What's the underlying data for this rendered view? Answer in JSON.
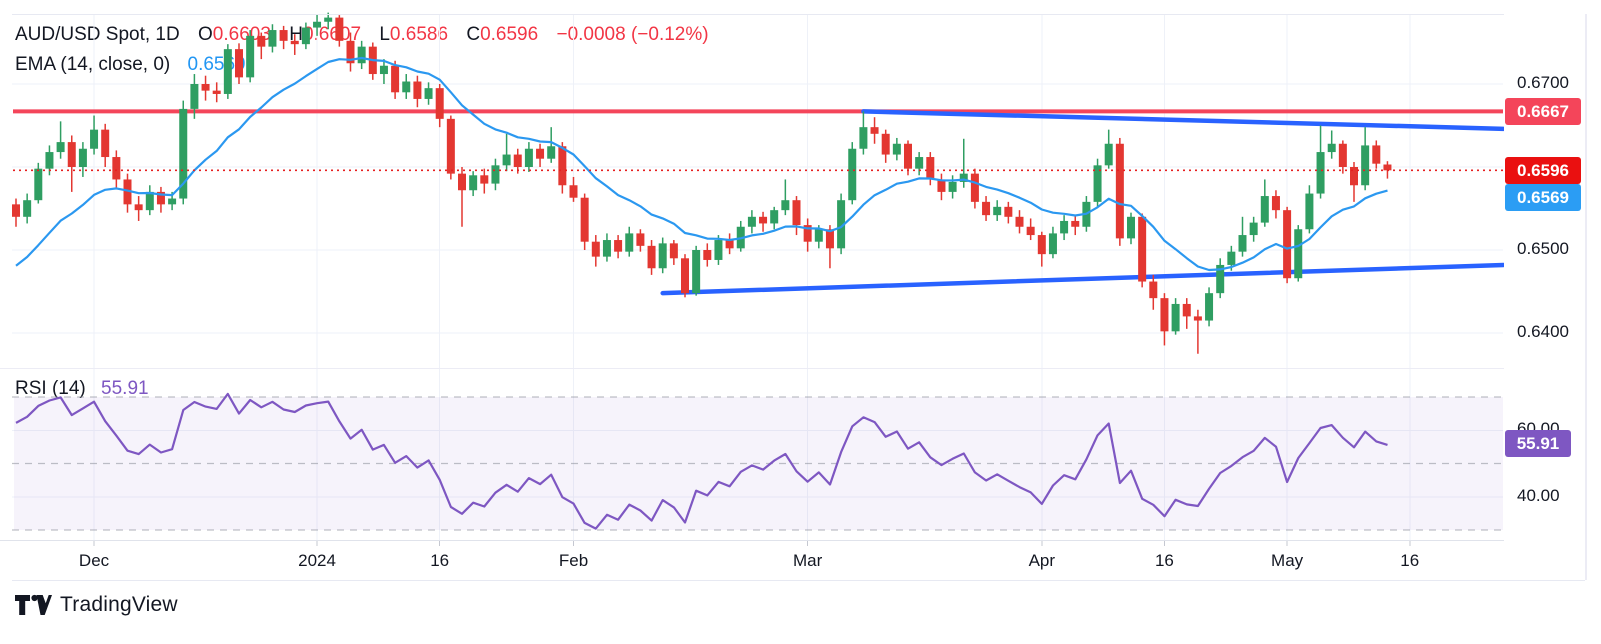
{
  "header": {
    "title": "AUD/USD Spot, 1D",
    "ohlc": {
      "o_label": "O",
      "o": "0.6603",
      "h_label": "H",
      "h": "0.6607",
      "l_label": "L",
      "l": "0.6586",
      "c_label": "C",
      "c": "0.6596",
      "change": "−0.0008 (−0.12%)"
    },
    "ema_label": "EMA (14, close, 0)",
    "ema_value": "0.6569"
  },
  "rsi_legend": {
    "label": "RSI (14)",
    "value": "55.91"
  },
  "badges": {
    "hline": "0.6667",
    "last": "0.6596",
    "ema": "0.6569",
    "rsi": "55.91"
  },
  "footer": {
    "brand": "TradingView"
  },
  "colors": {
    "up": "#2f9e62",
    "down": "#e33731",
    "ema": "#2b98f0",
    "trend": "#2962ff",
    "rsi": "#7e57c2",
    "hline": "#f4455a",
    "last_line": "#e62020",
    "grid": "#eef1f8",
    "dashed": "#8a8e99",
    "text": "#131722",
    "legend_red": "#f23645"
  },
  "chart_data": {
    "type": "candlestick",
    "symbol": "AUD/USD Spot",
    "interval": "1D",
    "title": "AUD/USD Spot, 1D",
    "last_ohlc": {
      "open": 0.6603,
      "high": 0.6607,
      "low": 0.6586,
      "close": 0.6596,
      "change": -0.0008,
      "change_pct": -0.12
    },
    "price_axis": {
      "range": [
        0.6371,
        0.6795
      ],
      "ticks": [
        {
          "price": 0.67,
          "label": "0.6700"
        },
        {
          "price": 0.66,
          "label": null
        },
        {
          "price": 0.65,
          "label": "0.6500"
        },
        {
          "price": 0.64,
          "label": "0.6400"
        }
      ]
    },
    "time_axis": {
      "ticks": [
        {
          "label": "Dec",
          "i": 7
        },
        {
          "label": "2024",
          "i": 27
        },
        {
          "label": "16",
          "i": 38
        },
        {
          "label": "Feb",
          "i": 50
        },
        {
          "label": "Mar",
          "i": 71
        },
        {
          "label": "Apr",
          "i": 92
        },
        {
          "label": "16",
          "i": 103
        },
        {
          "label": "May",
          "i": 114
        },
        {
          "label": "16",
          "i": 125
        }
      ]
    },
    "candles": [
      [
        0.6555,
        0.6562,
        0.6528,
        0.654
      ],
      [
        0.654,
        0.6568,
        0.6532,
        0.656
      ],
      [
        0.656,
        0.6605,
        0.6556,
        0.6598
      ],
      [
        0.6598,
        0.6626,
        0.659,
        0.6618
      ],
      [
        0.6618,
        0.6655,
        0.661,
        0.663
      ],
      [
        0.663,
        0.6638,
        0.657,
        0.66
      ],
      [
        0.66,
        0.663,
        0.6588,
        0.6622
      ],
      [
        0.6622,
        0.6662,
        0.6615,
        0.6645
      ],
      [
        0.6645,
        0.6652,
        0.66,
        0.6612
      ],
      [
        0.6612,
        0.662,
        0.6575,
        0.6585
      ],
      [
        0.6585,
        0.6592,
        0.6545,
        0.6555
      ],
      [
        0.6555,
        0.6565,
        0.6535,
        0.6548
      ],
      [
        0.6548,
        0.6578,
        0.6542,
        0.657
      ],
      [
        0.657,
        0.6576,
        0.6545,
        0.6555
      ],
      [
        0.6555,
        0.657,
        0.6548,
        0.6562
      ],
      [
        0.6562,
        0.668,
        0.6555,
        0.667
      ],
      [
        0.667,
        0.6712,
        0.6658,
        0.67
      ],
      [
        0.67,
        0.671,
        0.668,
        0.6692
      ],
      [
        0.6692,
        0.6702,
        0.6678,
        0.6688
      ],
      [
        0.6688,
        0.6748,
        0.6682,
        0.6742
      ],
      [
        0.6742,
        0.6749,
        0.67,
        0.6708
      ],
      [
        0.6708,
        0.6765,
        0.6702,
        0.6758
      ],
      [
        0.6758,
        0.6762,
        0.673,
        0.6745
      ],
      [
        0.6745,
        0.6772,
        0.6738,
        0.6765
      ],
      [
        0.6765,
        0.677,
        0.6742,
        0.6752
      ],
      [
        0.6752,
        0.676,
        0.6735,
        0.6748
      ],
      [
        0.6748,
        0.6774,
        0.6742,
        0.6768
      ],
      [
        0.6768,
        0.6784,
        0.6758,
        0.6775
      ],
      [
        0.6775,
        0.6786,
        0.6766,
        0.678
      ],
      [
        0.678,
        0.6783,
        0.6745,
        0.6752
      ],
      [
        0.6752,
        0.6762,
        0.6715,
        0.6725
      ],
      [
        0.6725,
        0.6752,
        0.6718,
        0.6745
      ],
      [
        0.6745,
        0.675,
        0.6705,
        0.6712
      ],
      [
        0.6712,
        0.673,
        0.67,
        0.6722
      ],
      [
        0.6722,
        0.6728,
        0.6682,
        0.669
      ],
      [
        0.669,
        0.6712,
        0.6682,
        0.6703
      ],
      [
        0.6703,
        0.671,
        0.6672,
        0.6682
      ],
      [
        0.6682,
        0.6702,
        0.6675,
        0.6695
      ],
      [
        0.6695,
        0.67,
        0.6648,
        0.6658
      ],
      [
        0.6658,
        0.6662,
        0.6585,
        0.6592
      ],
      [
        0.6592,
        0.66,
        0.6528,
        0.6572
      ],
      [
        0.6572,
        0.6595,
        0.6565,
        0.659
      ],
      [
        0.659,
        0.6598,
        0.6568,
        0.658
      ],
      [
        0.658,
        0.661,
        0.6572,
        0.6602
      ],
      [
        0.6602,
        0.664,
        0.6595,
        0.6615
      ],
      [
        0.6615,
        0.6622,
        0.6592,
        0.66
      ],
      [
        0.66,
        0.663,
        0.6594,
        0.6622
      ],
      [
        0.6622,
        0.6628,
        0.66,
        0.661
      ],
      [
        0.661,
        0.6648,
        0.6605,
        0.6625
      ],
      [
        0.6625,
        0.663,
        0.6568,
        0.6578
      ],
      [
        0.6578,
        0.6588,
        0.6558,
        0.6563
      ],
      [
        0.6563,
        0.6568,
        0.65,
        0.651
      ],
      [
        0.651,
        0.6518,
        0.648,
        0.6492
      ],
      [
        0.6492,
        0.652,
        0.6486,
        0.6512
      ],
      [
        0.6512,
        0.6518,
        0.649,
        0.6498
      ],
      [
        0.6498,
        0.6528,
        0.6492,
        0.652
      ],
      [
        0.652,
        0.6525,
        0.6498,
        0.6505
      ],
      [
        0.6505,
        0.6512,
        0.647,
        0.6478
      ],
      [
        0.6478,
        0.6515,
        0.6472,
        0.6508
      ],
      [
        0.6508,
        0.6512,
        0.6482,
        0.649
      ],
      [
        0.649,
        0.6495,
        0.6443,
        0.6448
      ],
      [
        0.6448,
        0.6505,
        0.6445,
        0.65
      ],
      [
        0.65,
        0.6508,
        0.648,
        0.6488
      ],
      [
        0.6488,
        0.6518,
        0.6482,
        0.6512
      ],
      [
        0.6512,
        0.652,
        0.6495,
        0.6502
      ],
      [
        0.6502,
        0.6535,
        0.6498,
        0.6528
      ],
      [
        0.6528,
        0.6548,
        0.652,
        0.654
      ],
      [
        0.654,
        0.6546,
        0.6522,
        0.6532
      ],
      [
        0.6532,
        0.6552,
        0.6525,
        0.6548
      ],
      [
        0.6548,
        0.6585,
        0.6542,
        0.656
      ],
      [
        0.656,
        0.6565,
        0.6518,
        0.653
      ],
      [
        0.653,
        0.6538,
        0.6498,
        0.651
      ],
      [
        0.651,
        0.653,
        0.6502,
        0.6525
      ],
      [
        0.6525,
        0.653,
        0.6478,
        0.6502
      ],
      [
        0.6502,
        0.6568,
        0.6495,
        0.656
      ],
      [
        0.656,
        0.663,
        0.6555,
        0.6622
      ],
      [
        0.6622,
        0.6667,
        0.6615,
        0.6648
      ],
      [
        0.6648,
        0.666,
        0.6628,
        0.664
      ],
      [
        0.664,
        0.6645,
        0.6605,
        0.6615
      ],
      [
        0.6615,
        0.6635,
        0.6608,
        0.6628
      ],
      [
        0.6628,
        0.6632,
        0.659,
        0.6598
      ],
      [
        0.6598,
        0.6618,
        0.659,
        0.6612
      ],
      [
        0.6612,
        0.6618,
        0.6578,
        0.6585
      ],
      [
        0.6585,
        0.6592,
        0.656,
        0.657
      ],
      [
        0.657,
        0.659,
        0.6562,
        0.6582
      ],
      [
        0.6582,
        0.6634,
        0.6575,
        0.6592
      ],
      [
        0.6592,
        0.6598,
        0.655,
        0.6558
      ],
      [
        0.6558,
        0.6565,
        0.6535,
        0.6542
      ],
      [
        0.6542,
        0.656,
        0.6535,
        0.6552
      ],
      [
        0.6552,
        0.6558,
        0.6532,
        0.654
      ],
      [
        0.654,
        0.6548,
        0.652,
        0.6528
      ],
      [
        0.6528,
        0.6538,
        0.6512,
        0.6518
      ],
      [
        0.6518,
        0.6522,
        0.648,
        0.6495
      ],
      [
        0.6495,
        0.6528,
        0.649,
        0.652
      ],
      [
        0.652,
        0.6542,
        0.6512,
        0.6535
      ],
      [
        0.6535,
        0.6542,
        0.6518,
        0.6528
      ],
      [
        0.6528,
        0.6565,
        0.6522,
        0.6558
      ],
      [
        0.6558,
        0.661,
        0.6552,
        0.6602
      ],
      [
        0.6602,
        0.6645,
        0.6598,
        0.6628
      ],
      [
        0.6628,
        0.6635,
        0.6505,
        0.6514
      ],
      [
        0.6514,
        0.6545,
        0.6507,
        0.654
      ],
      [
        0.654,
        0.6544,
        0.6455,
        0.6462
      ],
      [
        0.6462,
        0.647,
        0.6428,
        0.6442
      ],
      [
        0.6442,
        0.6448,
        0.6385,
        0.6402
      ],
      [
        0.6402,
        0.6442,
        0.6398,
        0.6435
      ],
      [
        0.6435,
        0.6442,
        0.6405,
        0.642
      ],
      [
        0.642,
        0.6428,
        0.6375,
        0.6415
      ],
      [
        0.6415,
        0.6455,
        0.6408,
        0.6448
      ],
      [
        0.6448,
        0.649,
        0.6442,
        0.6482
      ],
      [
        0.6482,
        0.6505,
        0.6475,
        0.6498
      ],
      [
        0.6498,
        0.654,
        0.6492,
        0.6518
      ],
      [
        0.6518,
        0.654,
        0.651,
        0.6533
      ],
      [
        0.6533,
        0.6585,
        0.6528,
        0.6565
      ],
      [
        0.6565,
        0.6572,
        0.6538,
        0.6548
      ],
      [
        0.6548,
        0.6552,
        0.646,
        0.6466
      ],
      [
        0.6466,
        0.653,
        0.6462,
        0.6525
      ],
      [
        0.6525,
        0.6578,
        0.652,
        0.6568
      ],
      [
        0.6568,
        0.665,
        0.6562,
        0.6618
      ],
      [
        0.6618,
        0.6644,
        0.661,
        0.6628
      ],
      [
        0.6628,
        0.6632,
        0.6592,
        0.66
      ],
      [
        0.66,
        0.6606,
        0.6558,
        0.6578
      ],
      [
        0.6578,
        0.6648,
        0.6572,
        0.6626
      ],
      [
        0.6626,
        0.6632,
        0.6598,
        0.6604
      ],
      [
        0.6603,
        0.6607,
        0.6586,
        0.6596
      ]
    ],
    "overlays": {
      "ema": {
        "type": "EMA",
        "period": 14,
        "source": "close",
        "offset": 0,
        "last": 0.6569,
        "seed": 0.6472
      },
      "hline": {
        "price": 0.6667
      },
      "last_price": {
        "price": 0.6596,
        "style": "dotted"
      },
      "trendlines": [
        {
          "name": "upper",
          "i1": 76,
          "p1": 0.6667,
          "i2": 133.4,
          "p2": 0.6646
        },
        {
          "name": "lower",
          "i1": 58,
          "p1": 0.6448,
          "i2": 133.4,
          "p2": 0.6482
        }
      ]
    },
    "rsi": {
      "period": 14,
      "last": 55.91,
      "band": [
        30,
        70
      ],
      "dashed_levels": [
        70,
        50,
        30
      ],
      "axis_ticks": [
        {
          "value": 60,
          "label": "60.00"
        },
        {
          "value": 40,
          "label": "40.00"
        }
      ]
    }
  }
}
